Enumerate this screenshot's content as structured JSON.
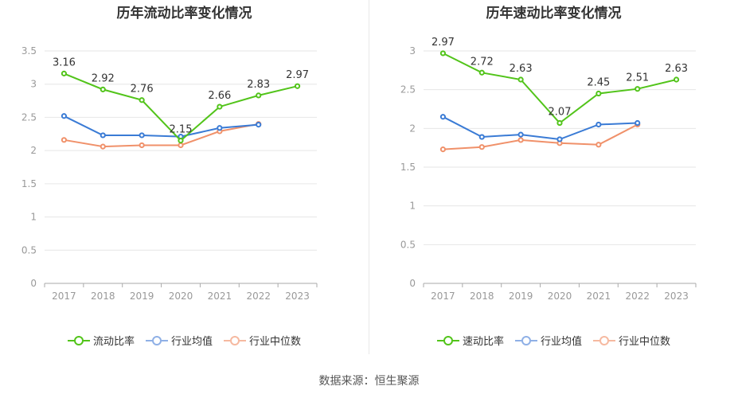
{
  "source_text": "数据来源：恒生聚源",
  "colors": {
    "primary": "#52c41a",
    "average": "#3a7bd5",
    "median": "#f0916a",
    "grid": "#e6e6e6",
    "axis": "#999999"
  },
  "chart_data": [
    {
      "type": "line",
      "title": "历年流动比率变化情况",
      "categories": [
        "2017",
        "2018",
        "2019",
        "2020",
        "2021",
        "2022",
        "2023"
      ],
      "ylim": [
        0,
        3.5
      ],
      "yticks": [
        "0",
        "0.5",
        "1",
        "1.5",
        "2",
        "2.5",
        "3",
        "3.5"
      ],
      "legend_position": "bottom",
      "grid": true,
      "series": [
        {
          "name": "流动比率",
          "values": [
            3.16,
            2.92,
            2.76,
            2.15,
            2.66,
            2.83,
            2.97
          ],
          "labels": [
            "3.16",
            "2.92",
            "2.76",
            "2.15",
            "2.66",
            "2.83",
            "2.97"
          ]
        },
        {
          "name": "行业均值",
          "values": [
            2.52,
            2.23,
            2.23,
            2.21,
            2.34,
            2.39,
            null
          ]
        },
        {
          "name": "行业中位数",
          "values": [
            2.16,
            2.06,
            2.08,
            2.08,
            2.29,
            2.4,
            null
          ]
        }
      ]
    },
    {
      "type": "line",
      "title": "历年速动比率变化情况",
      "categories": [
        "2017",
        "2018",
        "2019",
        "2020",
        "2021",
        "2022",
        "2023"
      ],
      "ylim": [
        0,
        3
      ],
      "yticks": [
        "0",
        "0.5",
        "1",
        "1.5",
        "2",
        "2.5",
        "3"
      ],
      "legend_position": "bottom",
      "grid": true,
      "series": [
        {
          "name": "速动比率",
          "values": [
            2.97,
            2.72,
            2.63,
            2.07,
            2.45,
            2.51,
            2.63
          ],
          "labels": [
            "2.97",
            "2.72",
            "2.63",
            "2.07",
            "2.45",
            "2.51",
            "2.63"
          ]
        },
        {
          "name": "行业均值",
          "values": [
            2.15,
            1.89,
            1.92,
            1.86,
            2.05,
            2.07,
            null
          ]
        },
        {
          "name": "行业中位数",
          "values": [
            1.73,
            1.76,
            1.85,
            1.81,
            1.79,
            2.05,
            null
          ]
        }
      ]
    }
  ]
}
